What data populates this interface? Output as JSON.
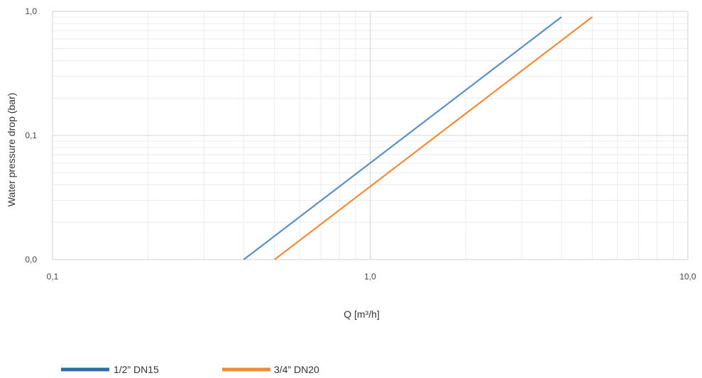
{
  "chart_data": {
    "type": "line",
    "xscale": "log",
    "yscale": "log",
    "xlim": [
      0.1,
      10.0
    ],
    "ylim": [
      0.01,
      1.0
    ],
    "x_ticks": [
      {
        "value": 0.1,
        "label": "0,1"
      },
      {
        "value": 1.0,
        "label": "1,0"
      },
      {
        "value": 10.0,
        "label": "10,0"
      }
    ],
    "y_ticks": [
      {
        "value": 0.01,
        "label": "0,0"
      },
      {
        "value": 0.1,
        "label": "0,1"
      },
      {
        "value": 1.0,
        "label": "1,0"
      }
    ],
    "xlabel": "Q [m³/h]",
    "ylabel": "Water pressure drop (bar)",
    "grid": true,
    "legend_position": "bottom-left",
    "series": [
      {
        "name": "1/2” DN15",
        "color": "#5b8fc0",
        "legend_color": "#2e6ca4",
        "x": [
          0.4,
          4.0
        ],
        "y": [
          0.01,
          0.9
        ]
      },
      {
        "name": "3/4” DN20",
        "color": "#ed8b3c",
        "legend_color": "#f08a33",
        "x": [
          0.5,
          5.0
        ],
        "y": [
          0.01,
          0.9
        ]
      }
    ]
  }
}
